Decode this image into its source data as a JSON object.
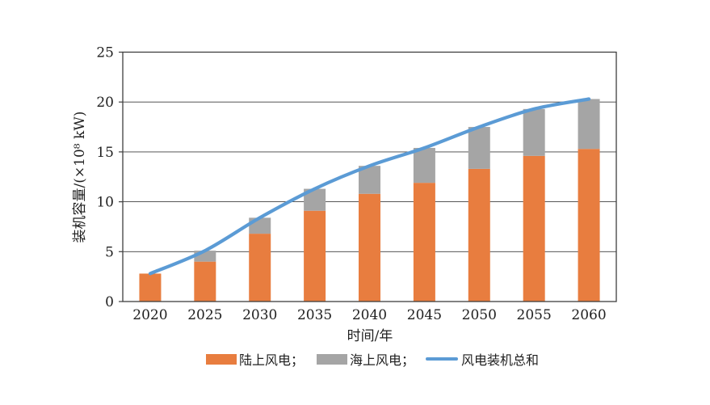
{
  "chart_data": {
    "type": "bar",
    "subtype": "stacked-bars-with-total-line",
    "categories": [
      "2020",
      "2025",
      "2030",
      "2035",
      "2040",
      "2045",
      "2050",
      "2055",
      "2060"
    ],
    "series": [
      {
        "name": "陆上风电",
        "role": "bar-stack-bottom",
        "color": "#E87D3F",
        "values": [
          2.8,
          4.0,
          6.8,
          9.1,
          10.8,
          11.9,
          13.3,
          14.6,
          15.3
        ]
      },
      {
        "name": "海上风电",
        "role": "bar-stack-top",
        "color": "#A5A5A5",
        "values": [
          0,
          1.1,
          1.6,
          2.2,
          2.8,
          3.5,
          4.2,
          4.7,
          5.0
        ]
      },
      {
        "name": "风电装机总和",
        "role": "line",
        "color": "#5B9BD5",
        "values": [
          2.8,
          5.1,
          8.4,
          11.3,
          13.6,
          15.4,
          17.5,
          19.3,
          20.3
        ]
      }
    ],
    "title": "",
    "xlabel": "时间/年",
    "ylabel": "装机容量/(×10⁸ kW)",
    "ylim": [
      0,
      25
    ],
    "ytick_step": 5,
    "y_ticks": [
      "0",
      "5",
      "10",
      "15",
      "20",
      "25"
    ],
    "grid": true,
    "grid_color": "#3f3f3f",
    "legend_position": "bottom",
    "line_smooth": true
  },
  "legend": {
    "items": [
      {
        "label": "陆上风电；",
        "swatch": "bar",
        "color": "#E87D3F"
      },
      {
        "label": "海上风电；",
        "swatch": "bar",
        "color": "#A5A5A5"
      },
      {
        "label": "风电装机总和",
        "swatch": "line",
        "color": "#5B9BD5"
      }
    ]
  },
  "colors": {
    "background": "#ffffff",
    "onshore_bar": "#E87D3F",
    "offshore_bar": "#A5A5A5",
    "total_line": "#5B9BD5",
    "axis": "#3f3f3f",
    "text": "#1f1f1f"
  }
}
